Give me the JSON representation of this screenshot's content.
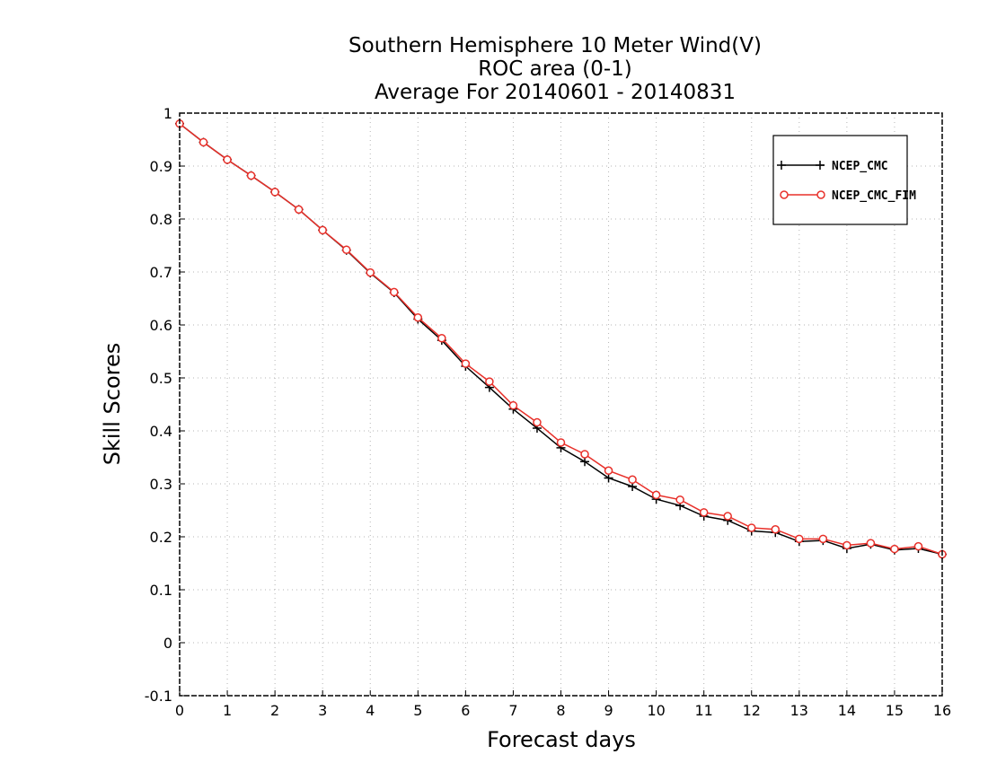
{
  "chart_data": {
    "type": "line",
    "title_lines": [
      "Southern Hemisphere 10 Meter Wind(V)",
      "ROC area (0-1)",
      "Average For 20140601 - 20140831"
    ],
    "xlabel": "Forecast days",
    "ylabel": "Skill Scores",
    "xlim": [
      0,
      16
    ],
    "ylim": [
      -0.1,
      1
    ],
    "x_ticks": [
      0,
      1,
      2,
      3,
      4,
      5,
      6,
      7,
      8,
      9,
      10,
      11,
      12,
      13,
      14,
      15,
      16
    ],
    "x_tick_labels": [
      "0",
      "1",
      "2",
      "3",
      "4",
      "5",
      "6",
      "7",
      "8",
      "9",
      "10",
      "11",
      "12",
      "13",
      "14",
      "15",
      "16"
    ],
    "y_ticks": [
      -0.1,
      0,
      0.1,
      0.2,
      0.3,
      0.4,
      0.5,
      0.6,
      0.7,
      0.8,
      0.9,
      1
    ],
    "y_tick_labels": [
      "-0.1",
      "0",
      "0.1",
      "0.2",
      "0.3",
      "0.4",
      "0.5",
      "0.6",
      "0.7",
      "0.8",
      "0.9",
      "1"
    ],
    "grid": true,
    "legend_position": "top-right",
    "x": [
      0,
      0.5,
      1,
      1.5,
      2,
      2.5,
      3,
      3.5,
      4,
      4.5,
      5,
      5.5,
      6,
      6.5,
      7,
      7.5,
      8,
      8.5,
      9,
      9.5,
      10,
      10.5,
      11,
      11.5,
      12,
      12.5,
      13,
      13.5,
      14,
      14.5,
      15,
      15.5,
      16
    ],
    "series": [
      {
        "name": "NCEP_CMC",
        "color": "#000000",
        "marker": "plus",
        "values": [
          0.98,
          0.945,
          0.912,
          0.882,
          0.851,
          0.818,
          0.779,
          0.741,
          0.698,
          0.661,
          0.611,
          0.571,
          0.522,
          0.482,
          0.441,
          0.405,
          0.368,
          0.342,
          0.311,
          0.295,
          0.271,
          0.259,
          0.239,
          0.231,
          0.211,
          0.208,
          0.191,
          0.193,
          0.178,
          0.186,
          0.175,
          0.178,
          0.167
        ]
      },
      {
        "name": "NCEP_CMC_FIM",
        "color": "#e8302a",
        "marker": "circle",
        "values": [
          0.98,
          0.945,
          0.912,
          0.882,
          0.851,
          0.818,
          0.779,
          0.742,
          0.699,
          0.662,
          0.614,
          0.575,
          0.527,
          0.493,
          0.448,
          0.416,
          0.378,
          0.356,
          0.325,
          0.308,
          0.279,
          0.27,
          0.246,
          0.239,
          0.217,
          0.214,
          0.196,
          0.196,
          0.184,
          0.188,
          0.177,
          0.182,
          0.167
        ]
      }
    ]
  }
}
